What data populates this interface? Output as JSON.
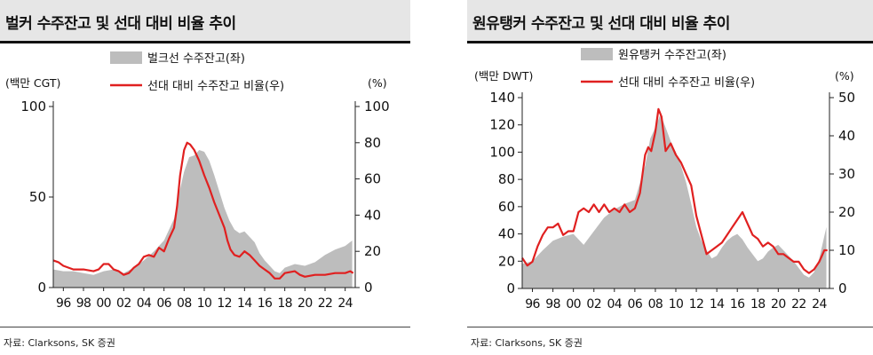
{
  "left": {
    "title": "벌커 수주잔고 및 선대 대비 비율 추이",
    "source": "자료: Clarksons, SK 증권",
    "chart_data": {
      "type": "area",
      "left_unit": "(백만 CGT)",
      "right_unit": "(%)",
      "x_tick_labels": [
        "96",
        "98",
        "00",
        "02",
        "04",
        "06",
        "08",
        "10",
        "12",
        "14",
        "16",
        "18",
        "20",
        "22",
        "24"
      ],
      "x_tick_years": [
        1996,
        1998,
        2000,
        2002,
        2004,
        2006,
        2008,
        2010,
        2012,
        2014,
        2016,
        2018,
        2020,
        2022,
        2024
      ],
      "xlim": [
        1995,
        2025
      ],
      "left_ylim": [
        0,
        100
      ],
      "left_ticks": [
        0,
        50,
        100
      ],
      "right_ylim": [
        0,
        100
      ],
      "right_ticks": [
        0,
        20,
        40,
        60,
        80,
        100
      ],
      "series": [
        {
          "name": "벌크선 수주잔고(좌)",
          "axis": "left",
          "kind": "area",
          "color": "#bdbdbd",
          "x": [
            1995,
            1996,
            1997,
            1998,
            1999,
            2000,
            2001,
            2002,
            2003,
            2004,
            2005,
            2006,
            2007,
            2007.5,
            2008,
            2008.5,
            2009,
            2009.5,
            2010,
            2010.5,
            2011,
            2011.5,
            2012,
            2012.5,
            2013,
            2013.5,
            2014,
            2014.5,
            2015,
            2015.5,
            2016,
            2016.5,
            2017,
            2017.5,
            2018,
            2019,
            2020,
            2021,
            2022,
            2023,
            2024,
            2024.7
          ],
          "y": [
            10,
            9,
            9,
            8,
            7,
            9,
            10,
            8,
            11,
            15,
            20,
            26,
            38,
            52,
            64,
            72,
            73,
            76,
            75,
            70,
            62,
            53,
            44,
            37,
            32,
            30,
            31,
            28,
            25,
            19,
            15,
            12,
            9,
            8,
            11,
            13,
            12,
            14,
            18,
            21,
            23,
            26
          ]
        },
        {
          "name": "선대 대비 수주잔고 비율(우)",
          "axis": "right",
          "kind": "line",
          "color": "#e02020",
          "x": [
            1995,
            1995.5,
            1996,
            1997,
            1998,
            1999,
            1999.5,
            2000,
            2000.5,
            2001,
            2001.5,
            2002,
            2002.5,
            2003,
            2003.5,
            2004,
            2004.5,
            2005,
            2005.5,
            2006,
            2006.5,
            2007,
            2007.3,
            2007.6,
            2008,
            2008.3,
            2008.6,
            2009,
            2009.5,
            2010,
            2010.5,
            2011,
            2011.5,
            2012,
            2012.3,
            2012.6,
            2013,
            2013.5,
            2014,
            2014.5,
            2015,
            2015.5,
            2016,
            2016.5,
            2017,
            2017.5,
            2018,
            2019,
            2019.5,
            2020,
            2021,
            2022,
            2023,
            2024,
            2024.5,
            2024.8
          ],
          "y": [
            15,
            14,
            12,
            10,
            10,
            9,
            10,
            13,
            13,
            10,
            9,
            7,
            8,
            11,
            13,
            17,
            18,
            17,
            22,
            20,
            27,
            33,
            45,
            62,
            76,
            80,
            79,
            76,
            70,
            62,
            55,
            47,
            40,
            33,
            26,
            21,
            18,
            17,
            20,
            18,
            15,
            12,
            10,
            8,
            5,
            5,
            8,
            9,
            7,
            6,
            7,
            7,
            8,
            8,
            9,
            8
          ]
        }
      ]
    }
  },
  "right": {
    "title": "원유탱커 수주잔고 및 선대 대비 비율 추이",
    "source": "자료: Clarksons, SK 증권",
    "chart_data": {
      "type": "area",
      "left_unit": "(백만 DWT)",
      "right_unit": "(%)",
      "x_tick_labels": [
        "96",
        "98",
        "00",
        "02",
        "04",
        "06",
        "08",
        "10",
        "12",
        "14",
        "16",
        "18",
        "20",
        "22",
        "24"
      ],
      "x_tick_years": [
        1996,
        1998,
        2000,
        2002,
        2004,
        2006,
        2008,
        2010,
        2012,
        2014,
        2016,
        2018,
        2020,
        2022,
        2024
      ],
      "xlim": [
        1995,
        2025
      ],
      "left_ylim": [
        0,
        140
      ],
      "left_ticks": [
        0,
        20,
        40,
        60,
        80,
        100,
        120,
        140
      ],
      "right_ylim": [
        0,
        50
      ],
      "right_ticks": [
        0,
        10,
        20,
        30,
        40,
        50
      ],
      "series": [
        {
          "name": "원유탱커 수주잔고(좌)",
          "axis": "left",
          "kind": "area",
          "color": "#bdbdbd",
          "x": [
            1995,
            1996,
            1997,
            1998,
            1999,
            2000,
            2001,
            2002,
            2003,
            2004,
            2005,
            2006,
            2007,
            2007.5,
            2008,
            2008.5,
            2009,
            2009.5,
            2010,
            2010.5,
            2011,
            2011.5,
            2012,
            2012.5,
            2013,
            2013.5,
            2014,
            2014.5,
            2015,
            2015.5,
            2016,
            2016.5,
            2017,
            2017.5,
            2018,
            2018.5,
            2019,
            2019.5,
            2020,
            2020.5,
            2021,
            2021.5,
            2022,
            2022.5,
            2023,
            2023.5,
            2024,
            2024.7
          ],
          "y": [
            18,
            20,
            28,
            35,
            38,
            40,
            32,
            42,
            52,
            58,
            62,
            65,
            90,
            110,
            118,
            128,
            118,
            108,
            100,
            90,
            78,
            62,
            45,
            35,
            28,
            22,
            24,
            30,
            35,
            38,
            40,
            36,
            30,
            25,
            20,
            22,
            27,
            30,
            32,
            28,
            24,
            20,
            15,
            10,
            8,
            12,
            22,
            45
          ]
        },
        {
          "name": "선대 대비 수주잔고 비율(우)",
          "axis": "right",
          "kind": "line",
          "color": "#e02020",
          "x": [
            1995,
            1995.5,
            1996,
            1996.5,
            1997,
            1997.5,
            1998,
            1998.5,
            1999,
            1999.5,
            2000,
            2000.5,
            2001,
            2001.5,
            2002,
            2002.5,
            2003,
            2003.5,
            2004,
            2004.5,
            2005,
            2005.5,
            2006,
            2006.5,
            2007,
            2007.3,
            2007.6,
            2008,
            2008.3,
            2008.6,
            2009,
            2009.5,
            2010,
            2010.5,
            2011,
            2011.5,
            2012,
            2012.5,
            2013,
            2013.5,
            2014,
            2014.5,
            2015,
            2015.5,
            2016,
            2016.5,
            2017,
            2017.5,
            2018,
            2018.5,
            2019,
            2019.5,
            2020,
            2020.5,
            2021,
            2021.5,
            2022,
            2022.5,
            2023,
            2023.5,
            2024,
            2024.5,
            2024.8
          ],
          "y": [
            8,
            6,
            7,
            11,
            14,
            16,
            16,
            17,
            14,
            15,
            15,
            20,
            21,
            20,
            22,
            20,
            22,
            20,
            21,
            20,
            22,
            20,
            21,
            25,
            35,
            37,
            36,
            41,
            47,
            45,
            36,
            38,
            35,
            33,
            30,
            27,
            19,
            14,
            9,
            10,
            11,
            12,
            14,
            16,
            18,
            20,
            17,
            14,
            13,
            11,
            12,
            11,
            9,
            9,
            8,
            7,
            7,
            5,
            4,
            5,
            7,
            10,
            10
          ]
        }
      ]
    }
  }
}
